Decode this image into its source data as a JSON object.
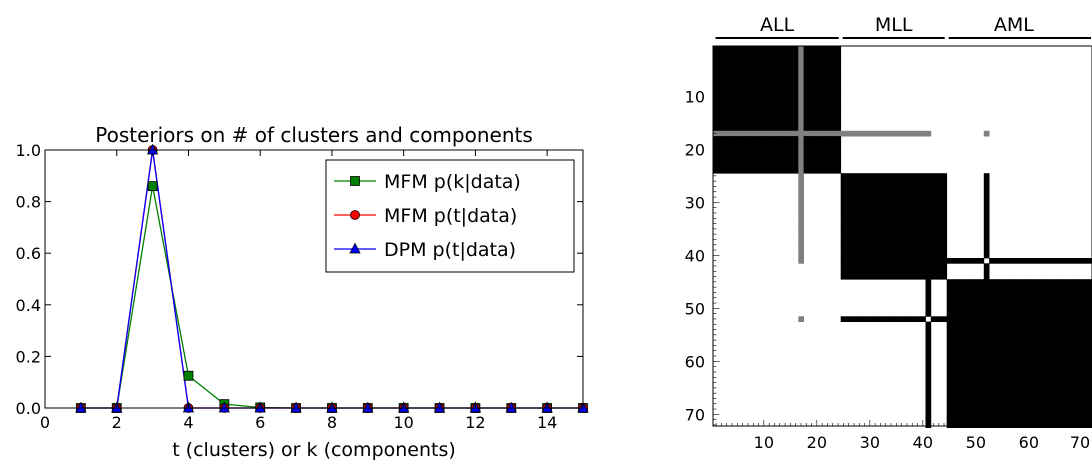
{
  "chart_data": [
    {
      "type": "line",
      "title": "Posteriors on # of clusters and components",
      "xlabel": "t (clusters) or k (components)",
      "ylabel": "",
      "xlim": [
        0,
        15
      ],
      "ylim": [
        0,
        1.0
      ],
      "x_ticks": [
        "0",
        "2",
        "4",
        "6",
        "8",
        "10",
        "12",
        "14"
      ],
      "y_ticks": [
        "0.0",
        "0.2",
        "0.4",
        "0.6",
        "0.8",
        "1.0"
      ],
      "legend_position": "top-right",
      "series": [
        {
          "name": "MFM p(k|data)",
          "color": "#008000",
          "marker": "square",
          "x": [
            1,
            2,
            3,
            4,
            5,
            6,
            7,
            8,
            9,
            10,
            11,
            12,
            13,
            14,
            15
          ],
          "y": [
            0,
            0,
            0.86,
            0.125,
            0.015,
            0.002,
            0,
            0,
            0,
            0,
            0,
            0,
            0,
            0,
            0
          ]
        },
        {
          "name": "MFM p(t|data)",
          "color": "#ff0000",
          "marker": "circle",
          "x": [
            1,
            2,
            3,
            4,
            5,
            6,
            7,
            8,
            9,
            10,
            11,
            12,
            13,
            14,
            15
          ],
          "y": [
            0,
            0,
            1.0,
            0,
            0,
            0,
            0,
            0,
            0,
            0,
            0,
            0,
            0,
            0,
            0
          ]
        },
        {
          "name": "DPM p(t|data)",
          "color": "#0000ff",
          "marker": "triangle",
          "x": [
            1,
            2,
            3,
            4,
            5,
            6,
            7,
            8,
            9,
            10,
            11,
            12,
            13,
            14,
            15
          ],
          "y": [
            0,
            0,
            1.0,
            0,
            0,
            0,
            0,
            0,
            0,
            0,
            0,
            0,
            0,
            0,
            0
          ]
        }
      ]
    },
    {
      "type": "heatmap",
      "title": "",
      "n": 72,
      "xlim": [
        1,
        72
      ],
      "ylim": [
        1,
        72
      ],
      "x_ticks": [
        "10",
        "20",
        "30",
        "40",
        "50",
        "60",
        "70"
      ],
      "y_ticks": [
        "10",
        "20",
        "30",
        "40",
        "50",
        "60",
        "70"
      ],
      "groups": [
        {
          "label": "ALL",
          "start": 1,
          "end": 24
        },
        {
          "label": "MLL",
          "start": 25,
          "end": 44
        },
        {
          "label": "AML",
          "start": 45,
          "end": 72
        }
      ],
      "clusters": [
        [
          1,
          24
        ],
        [
          25,
          44
        ],
        [
          45,
          72
        ]
      ],
      "gray_rows": [
        17
      ],
      "special_rows": [
        41,
        52
      ],
      "colors": {
        "high": "#000000",
        "mid": "#808080",
        "low": "#ffffff"
      }
    }
  ]
}
